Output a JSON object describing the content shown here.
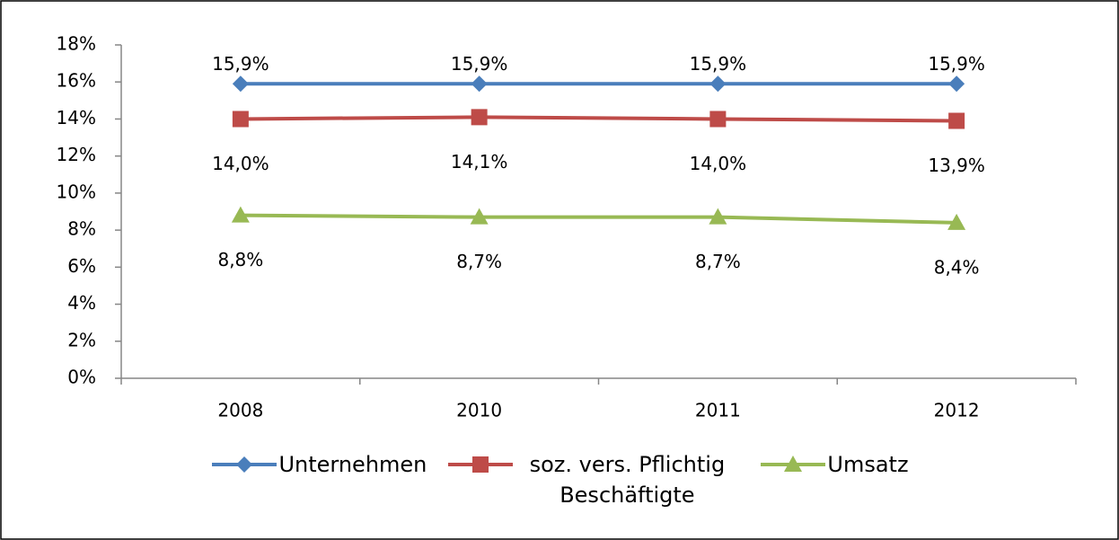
{
  "chart_data": {
    "type": "line",
    "categories": [
      "2008",
      "2010",
      "2011",
      "2012"
    ],
    "series": [
      {
        "name": "Unternehmen",
        "color": "#4a7ebb",
        "marker": "diamond",
        "label_position": "above",
        "values": [
          15.9,
          15.9,
          15.9,
          15.9
        ],
        "value_labels": [
          "15,9%",
          "15,9%",
          "15,9%",
          "15,9%"
        ]
      },
      {
        "name": "soz. vers. Pflichtig Beschäftigte",
        "color": "#be4b48",
        "marker": "square",
        "label_position": "below",
        "values": [
          14.0,
          14.1,
          14.0,
          13.9
        ],
        "value_labels": [
          "14,0%",
          "14,1%",
          "14,0%",
          "13,9%"
        ]
      },
      {
        "name": "Umsatz",
        "color": "#98b954",
        "marker": "triangle",
        "label_position": "below",
        "values": [
          8.8,
          8.7,
          8.7,
          8.4
        ],
        "value_labels": [
          "8,8%",
          "8,7%",
          "8,7%",
          "8,4%"
        ]
      }
    ],
    "ylim": [
      0,
      18
    ],
    "yticks": [
      {
        "value": 0,
        "label": "0%"
      },
      {
        "value": 2,
        "label": "2%"
      },
      {
        "value": 4,
        "label": "4%"
      },
      {
        "value": 6,
        "label": "6%"
      },
      {
        "value": 8,
        "label": "8%"
      },
      {
        "value": 10,
        "label": "10%"
      },
      {
        "value": 12,
        "label": "12%"
      },
      {
        "value": 14,
        "label": "14%"
      },
      {
        "value": 16,
        "label": "16%"
      },
      {
        "value": 18,
        "label": "18%"
      }
    ],
    "grid": false,
    "legend": "bottom"
  }
}
